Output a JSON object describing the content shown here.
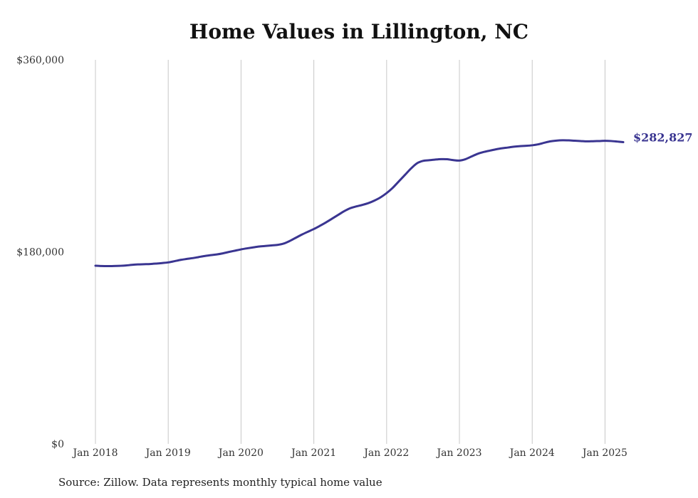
{
  "chart_data": {
    "type": "line",
    "title": "Home Values in Lillington, NC",
    "xlabel": "",
    "ylabel": "",
    "ylim": [
      0,
      360000
    ],
    "y_ticks": [
      {
        "value": 0,
        "label": "$0"
      },
      {
        "value": 180000,
        "label": "$180,000"
      },
      {
        "value": 360000,
        "label": "$360,000"
      }
    ],
    "x_range": [
      "2018-01",
      "2025-04"
    ],
    "x_ticks": [
      {
        "date": "2018-01",
        "label": "Jan 2018"
      },
      {
        "date": "2019-01",
        "label": "Jan 2019"
      },
      {
        "date": "2020-01",
        "label": "Jan 2020"
      },
      {
        "date": "2021-01",
        "label": "Jan 2021"
      },
      {
        "date": "2022-01",
        "label": "Jan 2022"
      },
      {
        "date": "2023-01",
        "label": "Jan 2023"
      },
      {
        "date": "2024-01",
        "label": "Jan 2024"
      },
      {
        "date": "2025-01",
        "label": "Jan 2025"
      }
    ],
    "grid": "vertical",
    "line_color": "#3a3591",
    "end_label": "$282,827",
    "series": [
      {
        "points": [
          [
            "2018-01",
            167000
          ],
          [
            "2018-02",
            166700
          ],
          [
            "2018-03",
            166600
          ],
          [
            "2018-04",
            166700
          ],
          [
            "2018-05",
            166900
          ],
          [
            "2018-06",
            167200
          ],
          [
            "2018-07",
            167800
          ],
          [
            "2018-08",
            168200
          ],
          [
            "2018-09",
            168400
          ],
          [
            "2018-10",
            168600
          ],
          [
            "2018-11",
            169000
          ],
          [
            "2018-12",
            169500
          ],
          [
            "2019-01",
            170100
          ],
          [
            "2019-02",
            171200
          ],
          [
            "2019-03",
            172400
          ],
          [
            "2019-04",
            173300
          ],
          [
            "2019-05",
            174100
          ],
          [
            "2019-06",
            175100
          ],
          [
            "2019-07",
            176100
          ],
          [
            "2019-08",
            176900
          ],
          [
            "2019-09",
            177600
          ],
          [
            "2019-10",
            178600
          ],
          [
            "2019-11",
            179900
          ],
          [
            "2019-12",
            181100
          ],
          [
            "2020-01",
            182300
          ],
          [
            "2020-02",
            183300
          ],
          [
            "2020-03",
            184200
          ],
          [
            "2020-04",
            185000
          ],
          [
            "2020-05",
            185500
          ],
          [
            "2020-06",
            186000
          ],
          [
            "2020-07",
            186500
          ],
          [
            "2020-08",
            187700
          ],
          [
            "2020-09",
            190100
          ],
          [
            "2020-10",
            193100
          ],
          [
            "2020-11",
            196100
          ],
          [
            "2020-12",
            198800
          ],
          [
            "2021-01",
            201400
          ],
          [
            "2021-02",
            204400
          ],
          [
            "2021-03",
            207600
          ],
          [
            "2021-04",
            211100
          ],
          [
            "2021-05",
            214600
          ],
          [
            "2021-06",
            218100
          ],
          [
            "2021-07",
            220900
          ],
          [
            "2021-08",
            222600
          ],
          [
            "2021-09",
            224000
          ],
          [
            "2021-10",
            225700
          ],
          [
            "2021-11",
            228100
          ],
          [
            "2021-12",
            231100
          ],
          [
            "2022-01",
            235100
          ],
          [
            "2022-02",
            240000
          ],
          [
            "2022-03",
            246000
          ],
          [
            "2022-04",
            252000
          ],
          [
            "2022-05",
            258000
          ],
          [
            "2022-06",
            263000
          ],
          [
            "2022-07",
            265300
          ],
          [
            "2022-08",
            265900
          ],
          [
            "2022-09",
            266500
          ],
          [
            "2022-10",
            266900
          ],
          [
            "2022-11",
            266800
          ],
          [
            "2022-12",
            266000
          ],
          [
            "2023-01",
            265600
          ],
          [
            "2023-02",
            266900
          ],
          [
            "2023-03",
            269400
          ],
          [
            "2023-04",
            271900
          ],
          [
            "2023-05",
            273600
          ],
          [
            "2023-06",
            274900
          ],
          [
            "2023-07",
            276100
          ],
          [
            "2023-08",
            277100
          ],
          [
            "2023-09",
            277800
          ],
          [
            "2023-10",
            278600
          ],
          [
            "2023-11",
            279100
          ],
          [
            "2023-12",
            279400
          ],
          [
            "2024-01",
            279900
          ],
          [
            "2024-02",
            280800
          ],
          [
            "2024-03",
            282300
          ],
          [
            "2024-04",
            283600
          ],
          [
            "2024-05",
            284300
          ],
          [
            "2024-06",
            284600
          ],
          [
            "2024-07",
            284500
          ],
          [
            "2024-08",
            284200
          ],
          [
            "2024-09",
            283900
          ],
          [
            "2024-10",
            283600
          ],
          [
            "2024-11",
            283700
          ],
          [
            "2024-12",
            283900
          ],
          [
            "2025-01",
            284100
          ],
          [
            "2025-02",
            283900
          ],
          [
            "2025-03",
            283400
          ],
          [
            "2025-04",
            282827
          ]
        ]
      }
    ]
  },
  "source_note": "Source: Zillow. Data represents monthly typical home value"
}
